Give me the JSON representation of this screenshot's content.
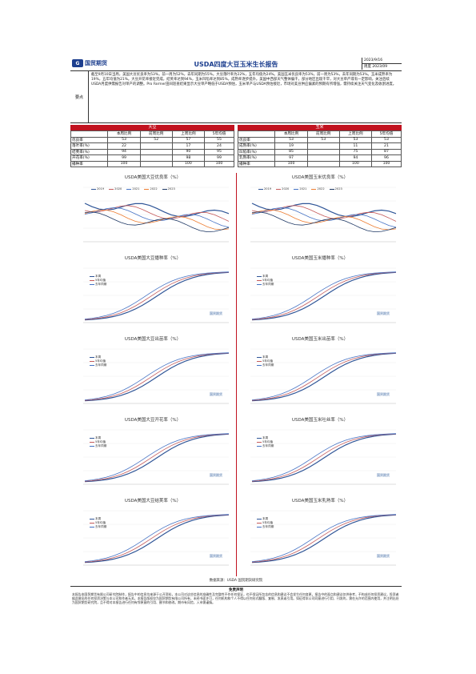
{
  "header": {
    "brand": "国贸期货",
    "title": "USDA四度大豆玉米生长报告",
    "date_line1": "2023/9/16",
    "date_line2": "周度 2023/09"
  },
  "summary": {
    "label": "要点",
    "text": "截至9月10日当周，美国大豆优良率为53%，前一周为52%，去年同期为55%。大豆落叶率为22%，五年均值为24%。美国玉米优良率为53%，前一周为53%，去年同期为53%。玉米成熟率为19%，五年均值为21%。大豆开花率接近完成，结荚率达到94%，玉米凹陷率达到85%，成熟率逐步提升。美国中西部天气整体偏干，部分地区出现干旱，对大豆单产或有一定影响，关注后续USDA月度供需报告对单产的调整。Pro Farmer田间巡查结果显示大豆单产略低于USDA预估，玉米单产与USDA预估接近，市场对美豆供应偏紧的预期有所增强，需持续关注天气变化及收割进度。"
  },
  "soy_table": {
    "head": "大豆",
    "cols": [
      "",
      "本周比例",
      "前周比例",
      "上周比例",
      "5年均值"
    ],
    "rows": [
      [
        "优良率",
        "53",
        "52",
        "57",
        "55"
      ],
      [
        "落叶率(%)",
        "22",
        "",
        "17",
        "24"
      ],
      [
        "结荚率(%)",
        "94",
        "",
        "90",
        "95"
      ],
      [
        "开花率(%)",
        "99",
        "",
        "98",
        "99"
      ],
      [
        "播种率",
        "100",
        "",
        "100",
        "100"
      ]
    ]
  },
  "corn_table": {
    "head": "玉米",
    "cols": [
      "",
      "本周比例",
      "前周比例",
      "上周比例",
      "5年均值"
    ],
    "rows": [
      [
        "优良率",
        "53",
        "53",
        "53",
        "53"
      ],
      [
        "成熟率(%)",
        "19",
        "",
        "11",
        "21"
      ],
      [
        "凹陷率(%)",
        "85",
        "",
        "75",
        "87"
      ],
      [
        "乳熟率(%)",
        "97",
        "",
        "94",
        "96"
      ],
      [
        "播种率",
        "100",
        "",
        "100",
        "100"
      ]
    ]
  },
  "charts": [
    {
      "title": "USDA美国大豆优良率（%）",
      "legend": [
        "2019",
        "2020",
        "2021",
        "2022",
        "2023"
      ]
    },
    {
      "title": "USDA美国玉米优良率（%）",
      "legend": [
        "2019",
        "2020",
        "2021",
        "2022",
        "2023"
      ]
    },
    {
      "title": "USDA美国大豆播种率（%）",
      "legend": [
        "本周",
        "5年均值",
        "去年同期"
      ]
    },
    {
      "title": "USDA美国玉米播种率（%）",
      "legend": [
        "本周",
        "5年均值",
        "去年同期"
      ]
    },
    {
      "title": "USDA美国大豆出苗率（%）",
      "legend": [
        "本周",
        "5年均值",
        "去年同期"
      ]
    },
    {
      "title": "USDA美国玉米出苗率（%）",
      "legend": [
        "本周",
        "5年均值",
        "去年同期"
      ]
    },
    {
      "title": "USDA美国大豆开花率（%）",
      "legend": [
        "本周",
        "5年均值",
        "去年同期"
      ]
    },
    {
      "title": "USDA美国玉米吐丝率（%）",
      "legend": [
        "本周",
        "5年均值",
        "去年同期"
      ]
    },
    {
      "title": "USDA美国大豆结荚率（%）",
      "legend": [
        "本周",
        "5年均值",
        "去年同期"
      ]
    },
    {
      "title": "USDA美国玉米乳熟率（%）",
      "legend": [
        "本周",
        "5年均值",
        "去年同期"
      ]
    }
  ],
  "watermark": "国贸期货",
  "source": "数据来源：USDA 国贸期货研究院",
  "disclaimer": {
    "title": "免责声明",
    "text": "本报告由国贸期货有限公司研究院制作，报告中的信息均来源于公开资料，本公司对这些信息的准确性及完整性不作任何保证，也不保证所包含的信息和建议不会发生任何变更。报告中的观点和建议仅供参考，不构成任何投资建议，投资者据此做出的任何投资决策与本公司和作者无关。本报告版权仅为国贸期货有限公司所有，未经书面许可，任何机构和个人不得以任何形式翻版、复制、发表或引用。如征得本公司同意进行引用、刊发的，需在允许的范围内使用，并注明出处为国贸期货研究院，且不得对本报告进行任何有悖原意的引用、删节和修改。期市有风险，入市需谨慎。"
  },
  "colors": {
    "brand": "#1d3f8f",
    "accent": "#c1121f",
    "series": [
      "#2f5597",
      "#c55a5a",
      "#4472c4",
      "#ed7d31",
      "#1f3864"
    ]
  }
}
